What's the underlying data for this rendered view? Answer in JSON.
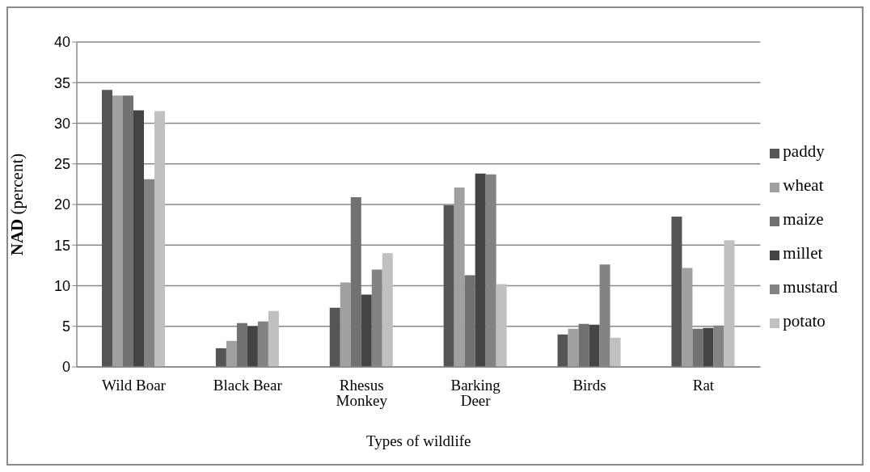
{
  "chart_data": {
    "type": "bar",
    "xlabel": "Types of wildlife",
    "ylabel": "NAD (percent)",
    "categories": [
      "Wild Boar",
      "Black Bear",
      "Rhesus Monkey",
      "Barking Deer",
      "Birds",
      "Rat"
    ],
    "series": [
      {
        "name": "paddy",
        "color": "#555555",
        "values": [
          34.1,
          2.3,
          7.3,
          19.9,
          4.0,
          18.5
        ]
      },
      {
        "name": "wheat",
        "color": "#a0a0a0",
        "values": [
          33.4,
          3.2,
          10.4,
          22.1,
          4.7,
          12.2
        ]
      },
      {
        "name": "maize",
        "color": "#717171",
        "values": [
          33.4,
          5.4,
          20.9,
          11.3,
          5.3,
          4.7
        ]
      },
      {
        "name": "millet",
        "color": "#444444",
        "values": [
          31.6,
          5.0,
          8.9,
          23.8,
          5.2,
          4.8
        ]
      },
      {
        "name": "mustard",
        "color": "#838383",
        "values": [
          23.1,
          5.6,
          12.0,
          23.7,
          12.6,
          5.1
        ]
      },
      {
        "name": "potato",
        "color": "#c0c0c0",
        "values": [
          31.5,
          6.9,
          14.0,
          10.2,
          3.6,
          15.6
        ]
      }
    ],
    "ylim": [
      0,
      40
    ],
    "yticks": [
      0,
      5,
      10,
      15,
      20,
      25,
      30,
      35,
      40
    ],
    "grid": "y",
    "legend": "right"
  }
}
